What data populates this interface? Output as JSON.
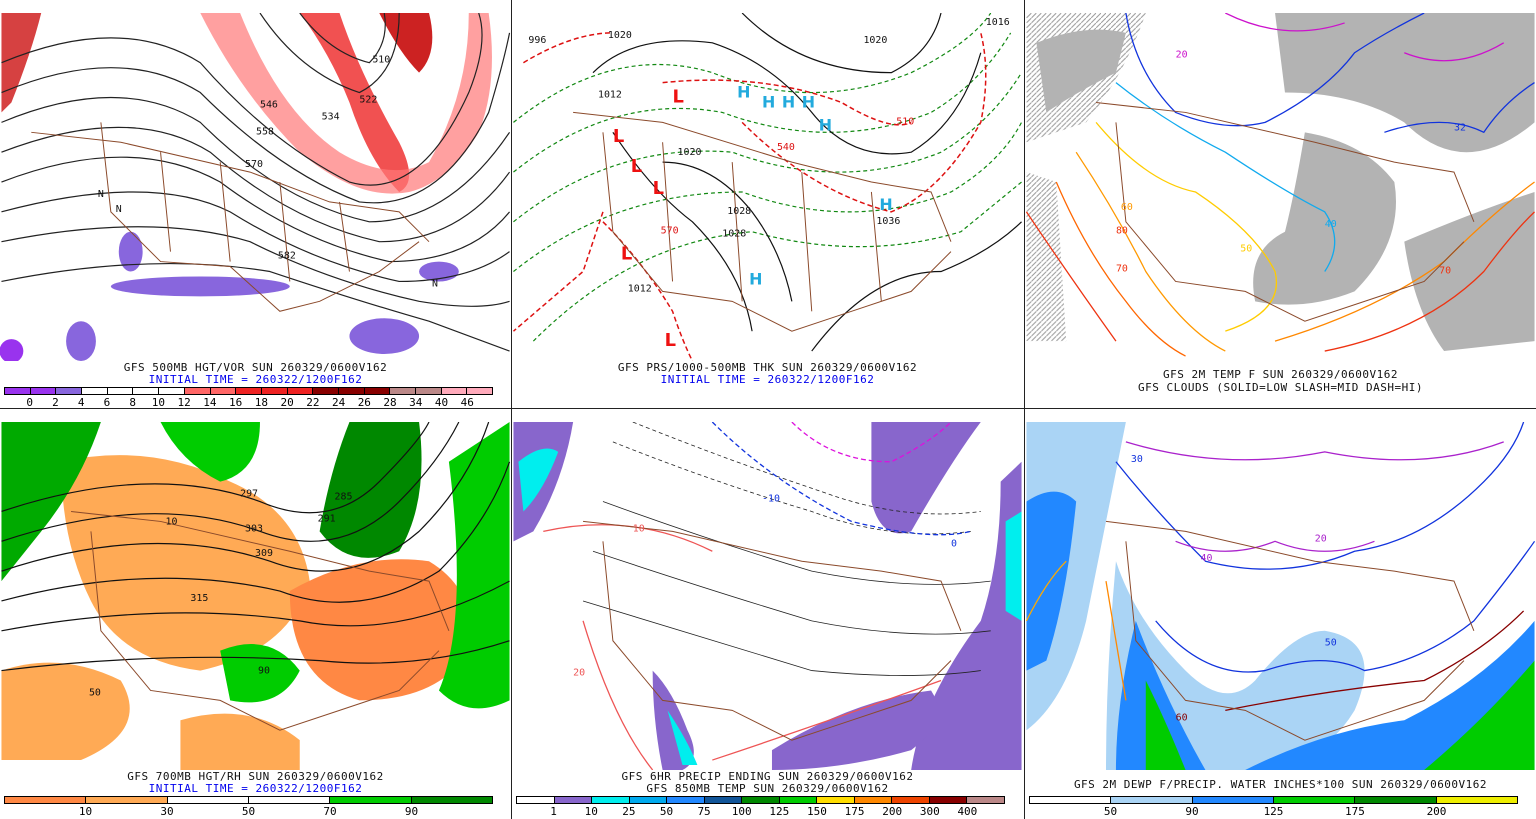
{
  "panels": [
    {
      "id": "500mb",
      "caption1": "GFS 500MB HGT/VOR SUN 260329/0600V162",
      "caption2": "INITIAL TIME = 260322/1200F162",
      "colorbar": {
        "colors": [
          "#9933ee",
          "#9933ee",
          "#8866dd",
          "#ffffff",
          "#ffffff",
          "#ffffff",
          "#ffffff",
          "#ff6666",
          "#ff6666",
          "#ee2222",
          "#ee2222",
          "#ee2222",
          "#880000",
          "#880000",
          "#880000",
          "#bb8888",
          "#bb8888",
          "#ffaabb",
          "#ffaabb"
        ],
        "labels": [
          "0",
          "2",
          "4",
          "6",
          "8",
          "10",
          "12",
          "14",
          "16",
          "18",
          "20",
          "22",
          "24",
          "26",
          "28",
          "34",
          "40",
          "46"
        ]
      },
      "map_labels": [
        "510",
        "522",
        "534",
        "546",
        "558",
        "570",
        "582",
        "N",
        "N",
        "N"
      ]
    },
    {
      "id": "surface",
      "caption1": "GFS PRS/1000-500MB THK SUN 260329/0600V162",
      "caption2": "INITIAL TIME = 260322/1200F162",
      "map_labels": [
        "996",
        "1020",
        "1012",
        "1020",
        "1016",
        "1028",
        "1020",
        "1028",
        "1036",
        "1012",
        "540",
        "510",
        "570",
        "L",
        "L",
        "L",
        "L",
        "L",
        "L",
        "H",
        "H",
        "H",
        "H",
        "H",
        "H",
        "H"
      ]
    },
    {
      "id": "2mtemp",
      "caption1": "GFS 2M TEMP F SUN 260329/0600V162",
      "caption2": "GFS CLOUDS (SOLID=LOW SLASH=MID DASH=HI)",
      "map_labels": [
        "20",
        "32",
        "40",
        "50",
        "60",
        "70",
        "80",
        "70"
      ]
    },
    {
      "id": "700mb",
      "caption1": "GFS 700MB HGT/RH SUN 260329/0600V162",
      "caption2": "INITIAL TIME = 260322/1200F162",
      "colorbar": {
        "colors": [
          "#ff8844",
          "#ffaa55",
          "#ffffff",
          "#ffffff",
          "#00cc00",
          "#008800"
        ],
        "labels": [
          "10",
          "30",
          "50",
          "70",
          "90"
        ]
      },
      "map_labels": [
        "297",
        "291",
        "285",
        "303",
        "309",
        "315",
        "10",
        "50",
        "90"
      ]
    },
    {
      "id": "precip",
      "caption1": "GFS 6HR PRECIP ENDING SUN 260329/0600V162",
      "caption2": "GFS 850MB TEMP SUN 260329/0600V162",
      "colorbar": {
        "colors": [
          "#ffffff",
          "#8866cc",
          "#00eeee",
          "#00aaee",
          "#2288ff",
          "#115599",
          "#008800",
          "#00cc00",
          "#ffdd00",
          "#ff8800",
          "#ee4400",
          "#880000",
          "#bb8888"
        ],
        "labels": [
          "1",
          "10",
          "25",
          "50",
          "75",
          "100",
          "125",
          "150",
          "175",
          "200",
          "300",
          "400"
        ]
      },
      "map_labels": [
        "-10",
        "0",
        "10",
        "20"
      ]
    },
    {
      "id": "dewpoint",
      "caption1": "GFS 2M DEWP F/PRECIP. WATER INCHES*100 SUN 260329/0600V162",
      "caption2": "",
      "colorbar": {
        "colors": [
          "#ffffff",
          "#aad4f5",
          "#2288ff",
          "#00cc00",
          "#008800",
          "#eeee00"
        ],
        "labels": [
          "50",
          "90",
          "125",
          "175",
          "200"
        ]
      },
      "map_labels": [
        "30",
        "40",
        "50",
        "60",
        "20"
      ]
    }
  ]
}
